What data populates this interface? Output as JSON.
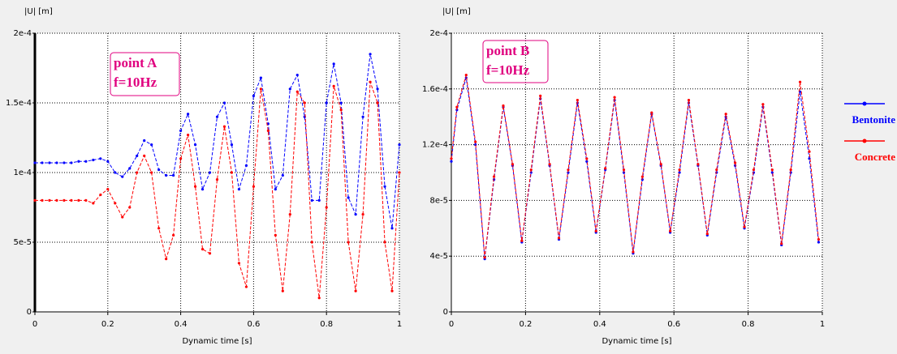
{
  "chart_data": [
    {
      "type": "line",
      "ylabel": "|U| [m]",
      "xlabel": "Dynamic time [s]",
      "annotations": [
        "point A",
        "f=10Hz"
      ],
      "xlim": [
        0,
        1
      ],
      "xticks": [
        0,
        0.2,
        0.4,
        0.6,
        0.8,
        1
      ],
      "ylim": [
        0,
        0.0002
      ],
      "yticks": [
        0,
        {
          "value": 5e-05,
          "label": "5e-5"
        },
        {
          "value": 0.0001,
          "label": "1e-4"
        },
        {
          "value": 0.00015,
          "label": "1.5e-4"
        },
        {
          "value": 0.0002,
          "label": "2e-4"
        }
      ],
      "grid": true,
      "x": [
        0,
        0.02,
        0.04,
        0.06,
        0.08,
        0.1,
        0.12,
        0.14,
        0.16,
        0.18,
        0.2,
        0.22,
        0.24,
        0.26,
        0.28,
        0.3,
        0.32,
        0.34,
        0.36,
        0.38,
        0.4,
        0.42,
        0.44,
        0.46,
        0.48,
        0.5,
        0.52,
        0.54,
        0.56,
        0.58,
        0.6,
        0.62,
        0.64,
        0.66,
        0.68,
        0.7,
        0.72,
        0.74,
        0.76,
        0.78,
        0.8,
        0.82,
        0.84,
        0.86,
        0.88,
        0.9,
        0.92,
        0.94,
        0.96,
        0.98,
        1
      ],
      "series": [
        {
          "name": "Bentonite",
          "color": "#0000ff",
          "values": [
            0.000107,
            0.000107,
            0.000107,
            0.000107,
            0.000107,
            0.000107,
            0.000108,
            0.000108,
            0.000109,
            0.00011,
            0.000108,
            0.0001,
            9.7e-05,
            0.000103,
            0.000112,
            0.000123,
            0.00012,
            0.000102,
            9.8e-05,
            9.8e-05,
            0.00013,
            0.000142,
            0.00012,
            8.8e-05,
            0.0001,
            0.00014,
            0.00015,
            0.00012,
            8.8e-05,
            0.000105,
            0.000155,
            0.000168,
            0.000135,
            8.8e-05,
            9.8e-05,
            0.00016,
            0.00017,
            0.00014,
            8e-05,
            8e-05,
            0.00015,
            0.000178,
            0.00015,
            8.2e-05,
            7e-05,
            0.00014,
            0.000185,
            0.00016,
            9e-05,
            6e-05,
            0.00012
          ]
        },
        {
          "name": "Concrete",
          "color": "#ff0000",
          "values": [
            8e-05,
            8e-05,
            8e-05,
            8e-05,
            8e-05,
            8e-05,
            8e-05,
            8e-05,
            7.8e-05,
            8.4e-05,
            8.8e-05,
            7.8e-05,
            6.8e-05,
            7.5e-05,
            0.0001,
            0.000112,
            0.0001,
            6e-05,
            3.8e-05,
            5.5e-05,
            0.00011,
            0.000127,
            9e-05,
            4.5e-05,
            4.2e-05,
            9.5e-05,
            0.000133,
            0.0001,
            3.5e-05,
            1.8e-05,
            9e-05,
            0.00016,
            0.00013,
            5.5e-05,
            1.5e-05,
            7e-05,
            0.000158,
            0.00015,
            5e-05,
            1e-05,
            7.5e-05,
            0.000162,
            0.000145,
            5e-05,
            1.5e-05,
            7e-05,
            0.000165,
            0.00015,
            5e-05,
            1.5e-05,
            0.0001
          ]
        }
      ]
    },
    {
      "type": "line",
      "ylabel": "|U| [m]",
      "xlabel": "Dynamic time [s]",
      "annotations": [
        "point B",
        "f=10Hz"
      ],
      "xlim": [
        0,
        1
      ],
      "xticks": [
        0,
        0.2,
        0.4,
        0.6,
        0.8,
        1
      ],
      "ylim": [
        0,
        0.0002
      ],
      "yticks": [
        0,
        {
          "value": 4e-05,
          "label": "4e-5"
        },
        {
          "value": 8e-05,
          "label": "8e-5"
        },
        {
          "value": 0.00012,
          "label": "1.2e-4"
        },
        {
          "value": 0.00016,
          "label": "1.6e-4"
        },
        {
          "value": 0.0002,
          "label": "2e-4"
        }
      ],
      "grid": true,
      "legend": "right",
      "x": [
        0,
        0.015,
        0.04,
        0.065,
        0.09,
        0.115,
        0.14,
        0.165,
        0.19,
        0.215,
        0.24,
        0.265,
        0.29,
        0.315,
        0.34,
        0.365,
        0.39,
        0.415,
        0.44,
        0.465,
        0.49,
        0.515,
        0.54,
        0.565,
        0.59,
        0.615,
        0.64,
        0.665,
        0.69,
        0.715,
        0.74,
        0.765,
        0.79,
        0.815,
        0.84,
        0.865,
        0.89,
        0.915,
        0.94,
        0.965,
        0.99
      ],
      "series": [
        {
          "name": "Bentonite",
          "color": "#0000ff",
          "values": [
            0.000108,
            0.000145,
            0.000168,
            0.00012,
            3.8e-05,
            9.5e-05,
            0.000147,
            0.000105,
            5e-05,
            0.0001,
            0.000153,
            0.000105,
            5.2e-05,
            0.0001,
            0.00015,
            0.000108,
            5.7e-05,
            0.000102,
            0.000152,
            0.0001,
            4.2e-05,
            9.5e-05,
            0.000142,
            0.000105,
            5.7e-05,
            0.0001,
            0.00015,
            0.000105,
            5.5e-05,
            0.0001,
            0.00014,
            0.000105,
            6e-05,
            0.0001,
            0.000147,
            0.0001,
            4.8e-05,
            0.0001,
            0.000158,
            0.00011,
            5e-05
          ]
        },
        {
          "name": "Concrete",
          "color": "#ff0000",
          "values": [
            0.00011,
            0.000147,
            0.00017,
            0.000122,
            3.9e-05,
            9.7e-05,
            0.000148,
            0.000106,
            5.1e-05,
            0.000102,
            0.000155,
            0.000106,
            5.3e-05,
            0.000102,
            0.000152,
            0.00011,
            5.8e-05,
            0.000103,
            0.000154,
            0.000102,
            4.3e-05,
            9.7e-05,
            0.000143,
            0.000106,
            5.8e-05,
            0.000102,
            0.000152,
            0.000106,
            5.6e-05,
            0.000102,
            0.000142,
            0.000107,
            6.1e-05,
            0.000102,
            0.000149,
            0.000102,
            4.9e-05,
            0.000102,
            0.000165,
            0.000115,
            5.2e-05
          ]
        }
      ]
    }
  ]
}
